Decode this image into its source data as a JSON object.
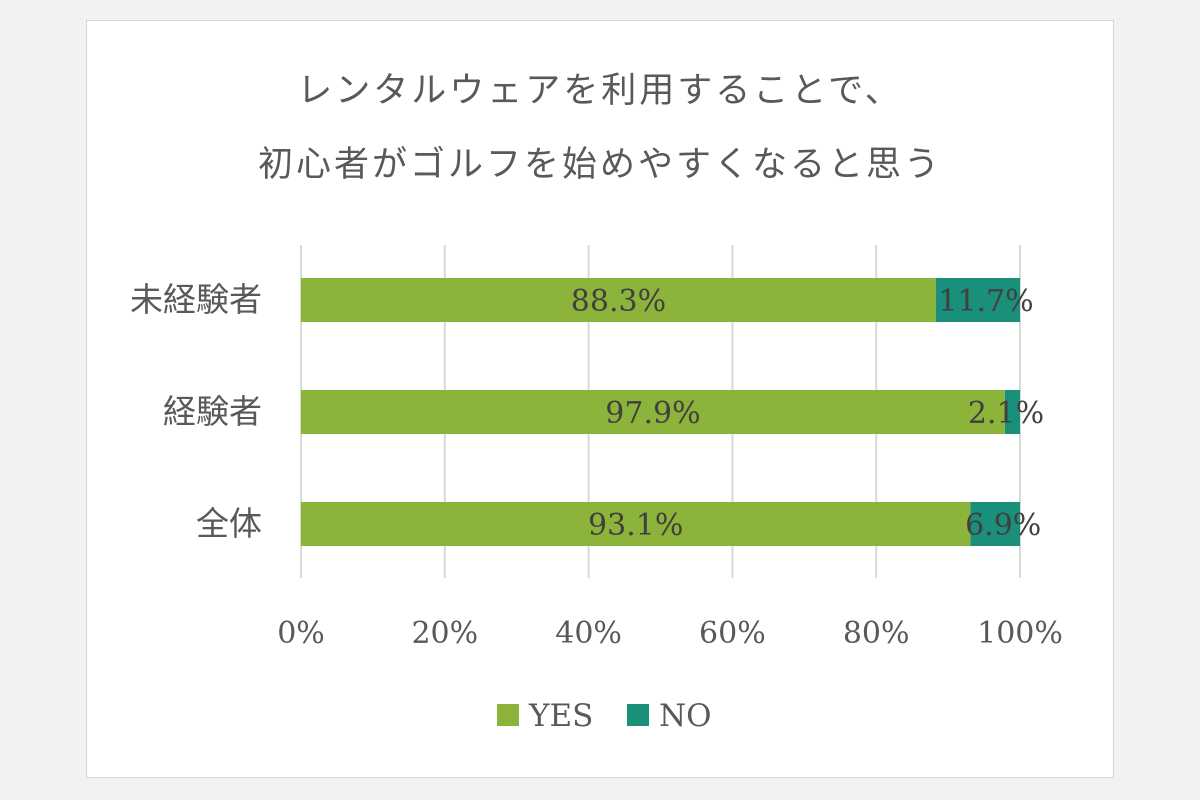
{
  "chart_data": {
    "type": "bar",
    "orientation": "horizontal",
    "stacked": true,
    "title_lines": [
      "レンタルウェアを利用することで、",
      "初心者がゴルフを始めやすくなると思う"
    ],
    "categories": [
      "未経験者",
      "経験者",
      "全体"
    ],
    "series": [
      {
        "name": "YES",
        "values": [
          88.3,
          97.9,
          93.1
        ],
        "labels": [
          "88.3%",
          "97.9%",
          "93.1%"
        ],
        "color": "#8db43a"
      },
      {
        "name": "NO",
        "values": [
          11.7,
          2.1,
          6.9
        ],
        "labels": [
          "11.7%",
          "2.1%",
          "6.9%"
        ],
        "color": "#1a8f7a"
      }
    ],
    "xlim": [
      0,
      100
    ],
    "x_ticks": [
      "0%",
      "20%",
      "40%",
      "60%",
      "80%",
      "100%"
    ],
    "grid": true,
    "legend": "bottom",
    "xlabel": "",
    "ylabel": ""
  }
}
